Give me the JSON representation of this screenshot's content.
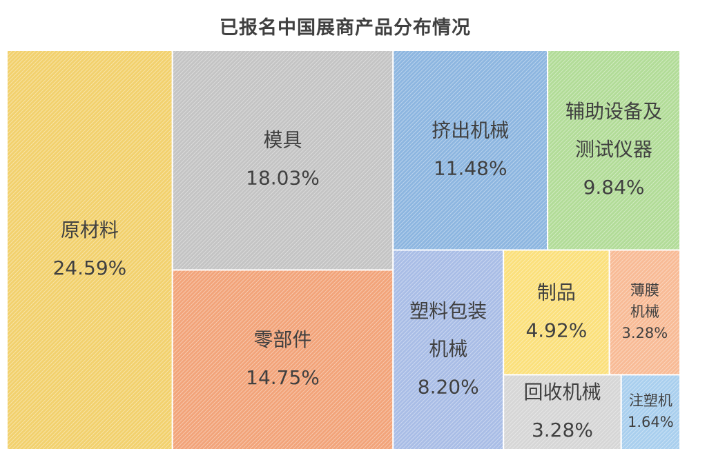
{
  "chart_data": {
    "type": "treemap",
    "title": "已报名中国展商产品分布情况",
    "items": [
      {
        "name": "原材料",
        "lines": [
          "原材料"
        ],
        "value": 24.59,
        "label": "24.59%",
        "color": "#f2d16e"
      },
      {
        "name": "模具",
        "lines": [
          "模具"
        ],
        "value": 18.03,
        "label": "18.03%",
        "color": "#c4c4c4"
      },
      {
        "name": "零部件",
        "lines": [
          "零部件"
        ],
        "value": 14.75,
        "label": "14.75%",
        "color": "#f2a47a"
      },
      {
        "name": "挤出机械",
        "lines": [
          "挤出机械"
        ],
        "value": 11.48,
        "label": "11.48%",
        "color": "#8db6e0"
      },
      {
        "name": "辅助设备及测试仪器",
        "lines": [
          "辅助设备及",
          "测试仪器"
        ],
        "value": 9.84,
        "label": "9.84%",
        "color": "#b2dc98"
      },
      {
        "name": "塑料包装机械",
        "lines": [
          "塑料包装",
          "机械"
        ],
        "value": 8.2,
        "label": "8.20%",
        "color": "#a9bde6"
      },
      {
        "name": "制品",
        "lines": [
          "制品"
        ],
        "value": 4.92,
        "label": "4.92%",
        "color": "#fbe07c"
      },
      {
        "name": "薄膜机械",
        "lines": [
          "薄膜",
          "机械"
        ],
        "value": 3.28,
        "label": "3.28%",
        "color": "#f8bb96"
      },
      {
        "name": "回收机械",
        "lines": [
          "回收机械"
        ],
        "value": 3.28,
        "label": "3.28%",
        "color": "#d6d6d6"
      },
      {
        "name": "注塑机",
        "lines": [
          "注塑机"
        ],
        "value": 1.64,
        "label": "1.64%",
        "color": "#a9cfee"
      }
    ]
  }
}
